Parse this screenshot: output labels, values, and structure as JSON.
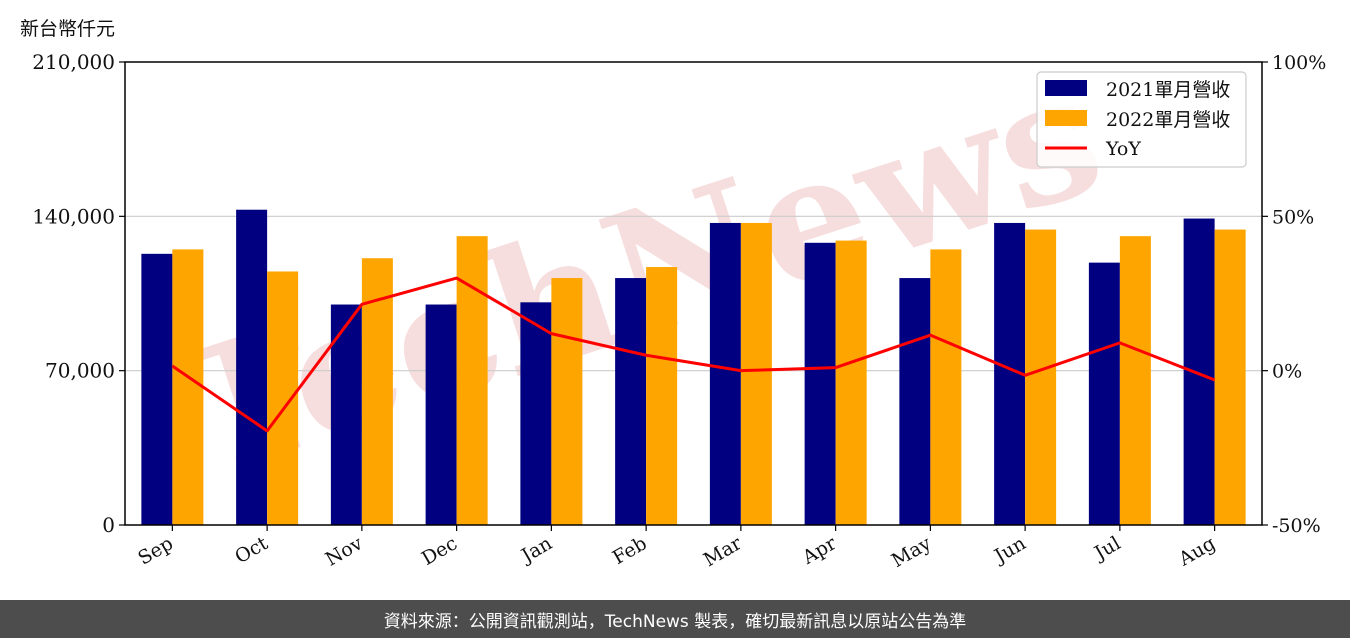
{
  "unit_label": "新台幣仟元",
  "footer": "資料來源：公開資訊觀測站，TechNews 製表，確切最新訊息以原站公告為準",
  "watermark": "TechNews",
  "colors": {
    "series_2021": "#000080",
    "series_2022": "#FFA500",
    "yoy": "#FF0000",
    "grid": "#cccccc",
    "watermark": "#f3c9c9"
  },
  "chart_data": {
    "type": "bar",
    "categories": [
      "Sep",
      "Oct",
      "Nov",
      "Dec",
      "Jan",
      "Feb",
      "Mar",
      "Apr",
      "May",
      "Jun",
      "Jul",
      "Aug"
    ],
    "series": [
      {
        "name": "2021單月營收",
        "values": [
          123000,
          143000,
          100000,
          100000,
          101000,
          112000,
          137000,
          128000,
          112000,
          137000,
          119000,
          139000
        ]
      },
      {
        "name": "2022單月營收",
        "values": [
          125000,
          115000,
          121000,
          131000,
          112000,
          117000,
          137000,
          129000,
          125000,
          134000,
          131000,
          134000
        ]
      }
    ],
    "line_series": {
      "name": "YoY",
      "values": [
        1.5,
        -19.5,
        21.5,
        30,
        12,
        5,
        0,
        1,
        11.5,
        -1.5,
        9,
        -3
      ]
    },
    "ylim": [
      0,
      210000
    ],
    "yticks": [
      "0",
      "70,000",
      "140,000",
      "210,000"
    ],
    "ytick_values": [
      0,
      70000,
      140000,
      210000
    ],
    "y2lim": [
      -50,
      100
    ],
    "y2ticks": [
      "-50%",
      "0%",
      "50%",
      "100%"
    ],
    "y2tick_values": [
      -50,
      0,
      50,
      100
    ],
    "grid": true,
    "legend_position": "top-right"
  }
}
